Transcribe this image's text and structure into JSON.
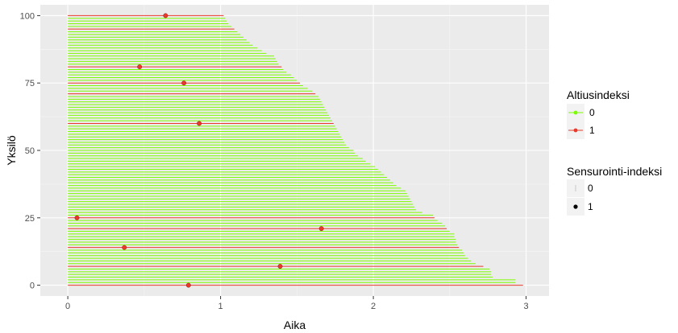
{
  "chart_data": {
    "type": "segment",
    "xlabel": "Aika",
    "ylabel": "Yksilö",
    "xlim": [
      -0.18,
      3.15
    ],
    "ylim": [
      -4,
      104
    ],
    "xticks": [
      0,
      1,
      2,
      3
    ],
    "yticks": [
      0,
      25,
      50,
      75,
      100
    ],
    "grid": true,
    "legend_position": "right",
    "colors": {
      "exposure_0": "#7CFC00",
      "exposure_1": "#E8392A",
      "panel": "#EBEBEB",
      "grid_major": "#FFFFFF"
    },
    "legends": [
      {
        "title": "Altiusindeksi",
        "entries": [
          {
            "label": "0",
            "color": "#7CFC00"
          },
          {
            "label": "1",
            "color": "#E8392A"
          }
        ]
      },
      {
        "title": "Sensurointi-indeksi",
        "entries": [
          {
            "label": "0",
            "shape": "dash"
          },
          {
            "label": "1",
            "shape": "dot"
          }
        ]
      }
    ],
    "end_times": [
      2.98,
      2.93,
      2.93,
      2.78,
      2.77,
      2.77,
      2.76,
      2.72,
      2.67,
      2.64,
      2.62,
      2.6,
      2.59,
      2.58,
      2.56,
      2.55,
      2.54,
      2.54,
      2.53,
      2.53,
      2.5,
      2.48,
      2.47,
      2.45,
      2.42,
      2.4,
      2.39,
      2.32,
      2.28,
      2.27,
      2.26,
      2.25,
      2.24,
      2.23,
      2.22,
      2.21,
      2.18,
      2.15,
      2.13,
      2.11,
      2.09,
      2.07,
      2.05,
      2.03,
      2.01,
      1.98,
      1.95,
      1.93,
      1.9,
      1.88,
      1.87,
      1.84,
      1.82,
      1.81,
      1.8,
      1.79,
      1.78,
      1.77,
      1.76,
      1.75,
      1.74,
      1.73,
      1.72,
      1.71,
      1.7,
      1.69,
      1.68,
      1.67,
      1.66,
      1.65,
      1.64,
      1.62,
      1.6,
      1.57,
      1.54,
      1.52,
      1.5,
      1.48,
      1.46,
      1.43,
      1.41,
      1.4,
      1.38,
      1.37,
      1.36,
      1.35,
      1.3,
      1.27,
      1.24,
      1.21,
      1.19,
      1.17,
      1.15,
      1.13,
      1.11,
      1.09,
      1.07,
      1.05,
      1.04,
      1.03,
      1.02
    ],
    "exposed_ids": [
      0,
      7,
      14,
      21,
      25,
      60,
      71,
      75,
      81,
      95,
      100
    ],
    "events": [
      {
        "id": 0,
        "time": 0.79
      },
      {
        "id": 7,
        "time": 1.39
      },
      {
        "id": 14,
        "time": 0.37
      },
      {
        "id": 21,
        "time": 1.66
      },
      {
        "id": 25,
        "time": 0.06
      },
      {
        "id": 60,
        "time": 0.86
      },
      {
        "id": 75,
        "time": 0.76
      },
      {
        "id": 81,
        "time": 0.47
      },
      {
        "id": 100,
        "time": 0.64
      }
    ]
  }
}
